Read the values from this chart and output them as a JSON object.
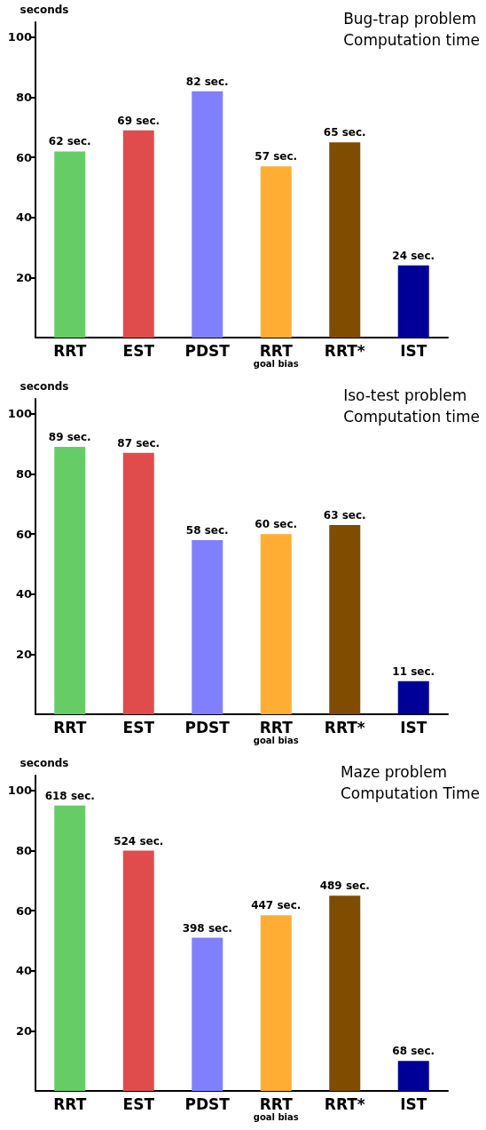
{
  "chart_data": [
    {
      "type": "bar",
      "title": "Bug-trap problem\nComputation time",
      "ylabel": "seconds",
      "categories": [
        "RRT",
        "EST",
        "PDST",
        "RRT\ngoal bias",
        "RRT*",
        "IST"
      ],
      "values": [
        62,
        69,
        82,
        57,
        65,
        24
      ],
      "colors": [
        "#66cc66",
        "#e04c4c",
        "#8080ff",
        "#ffae33",
        "#804c00",
        "#000099"
      ],
      "value_labels": [
        "62 sec.",
        "69 sec.",
        "82 sec.",
        "57 sec.",
        "65 sec.",
        "24 sec."
      ],
      "ylim": [
        0,
        105
      ],
      "yticks": [
        20,
        40,
        60,
        80,
        100
      ],
      "grid": false
    },
    {
      "type": "bar",
      "title": "Iso-test problem\nComputation time",
      "ylabel": "seconds",
      "categories": [
        "RRT",
        "EST",
        "PDST",
        "RRT\ngoal bias",
        "RRT*",
        "IST"
      ],
      "values": [
        89,
        87,
        58,
        60,
        63,
        11
      ],
      "colors": [
        "#66cc66",
        "#e04c4c",
        "#8080ff",
        "#ffae33",
        "#804c00",
        "#000099"
      ],
      "value_labels": [
        "89 sec.",
        "87 sec.",
        "58 sec.",
        "60 sec.",
        "63 sec.",
        "11 sec."
      ],
      "ylim": [
        0,
        105
      ],
      "yticks": [
        20,
        40,
        60,
        80,
        100
      ],
      "grid": false
    },
    {
      "type": "bar",
      "title": "Maze problem\nComputation Time",
      "ylabel": "seconds",
      "categories": [
        "RRT",
        "EST",
        "PDST",
        "RRT\ngoal bias",
        "RRT*",
        "IST"
      ],
      "values": [
        95,
        80,
        51,
        58.5,
        65,
        10
      ],
      "colors": [
        "#66cc66",
        "#e04c4c",
        "#8080ff",
        "#ffae33",
        "#804c00",
        "#000099"
      ],
      "annotations": [
        {
          "text": "618 sec.",
          "x": "RRT",
          "y": 95
        },
        {
          "text": "524 sec.",
          "x": "EST",
          "y": 80
        },
        {
          "text": "398 sec.",
          "x": "PDST",
          "y": 51
        },
        {
          "text": "447 sec.",
          "x": "RRT\ngoal bias",
          "y": 58.5
        },
        {
          "text": "489 sec.",
          "x": "RRT*",
          "y": 65
        },
        {
          "text": "68 sec.",
          "x": "IST",
          "y": 10
        }
      ],
      "ylim": [
        0,
        105
      ],
      "yticks": [
        20,
        40,
        60,
        80,
        100
      ],
      "grid": false
    }
  ]
}
